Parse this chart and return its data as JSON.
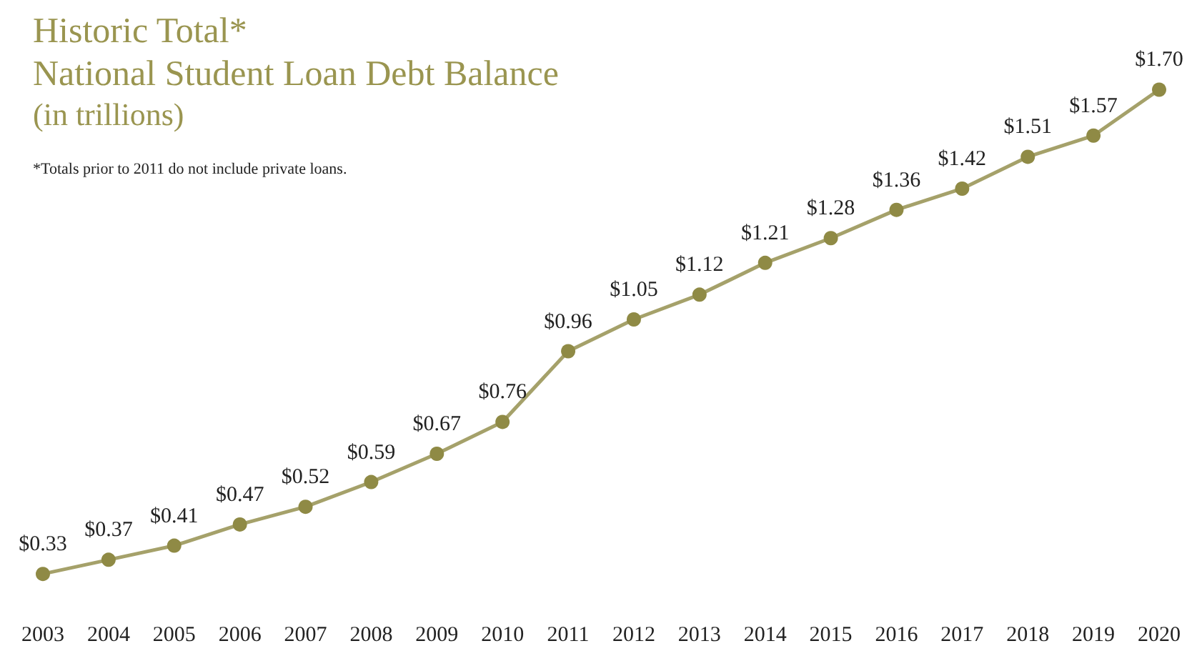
{
  "chart_data": {
    "type": "line",
    "title": "Historic Total*\nNational Student Loan Debt Balance",
    "subtitle": "(in trillions)",
    "annotations": [
      "*Totals prior to 2011 do not include private loans."
    ],
    "categories": [
      "2003",
      "2004",
      "2005",
      "2006",
      "2007",
      "2008",
      "2009",
      "2010",
      "2011",
      "2012",
      "2013",
      "2014",
      "2015",
      "2016",
      "2017",
      "2018",
      "2019",
      "2020"
    ],
    "series": [
      {
        "color": "#8f8a45",
        "values": [
          0.33,
          0.37,
          0.41,
          0.47,
          0.52,
          0.59,
          0.67,
          0.76,
          0.96,
          1.05,
          1.12,
          1.21,
          1.28,
          1.36,
          1.42,
          1.51,
          1.57,
          1.7
        ],
        "value_labels": [
          "$0.33",
          "$0.37",
          "$0.41",
          "$0.47",
          "$0.52",
          "$0.59",
          "$0.67",
          "$0.76",
          "$0.96",
          "$1.05",
          "$1.12",
          "$1.21",
          "$1.28",
          "$1.36",
          "$1.42",
          "$1.51",
          "$1.57",
          "$1.70"
        ]
      }
    ],
    "marker": "circle",
    "line_style": "solid",
    "grid": false
  }
}
